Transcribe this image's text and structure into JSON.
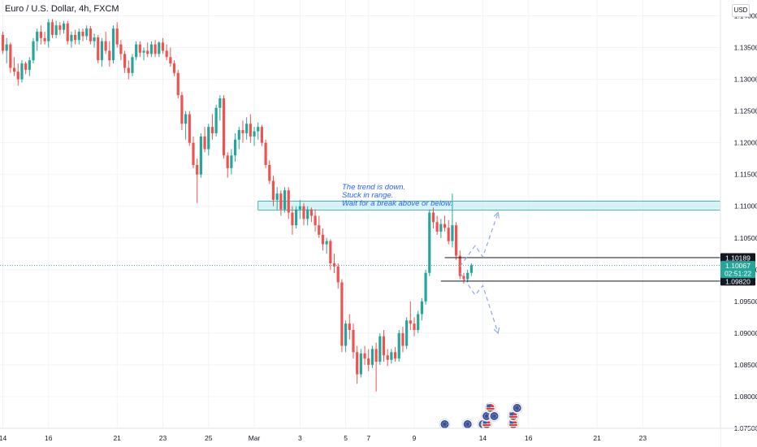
{
  "header": {
    "symbol_title": "Euro / U.S. Dollar, 4h, FXCM",
    "currency_button": "USD"
  },
  "annotation": {
    "lines": [
      "The trend is down.",
      "Stuck in range.",
      "Wait for a break above or below."
    ]
  },
  "colors": {
    "up": "#26a69a",
    "down": "#ef5350",
    "zone": "#b2ebf2",
    "zone_border": "#26a69a",
    "projection": "#90a8e8",
    "current_price_line": "#26a69a",
    "badge_dark": "#131722",
    "badge_current": "#26a69a",
    "axis_text": "#131722",
    "grid": "#f0f3fa"
  },
  "chart_data": {
    "type": "candlestick",
    "title": "Euro / U.S. Dollar, 4h, FXCM",
    "ylim": [
      1.075,
      1.1425
    ],
    "y_ticks": [
      "1.14000",
      "1.13500",
      "1.13000",
      "1.12500",
      "1.12000",
      "1.11500",
      "1.11000",
      "1.10500",
      "1.10000",
      "1.09500",
      "1.09000",
      "1.08500",
      "1.08000",
      "1.07500"
    ],
    "x_ticks": [
      {
        "label": "14",
        "bar": 0
      },
      {
        "label": "16",
        "bar": 12
      },
      {
        "label": "21",
        "bar": 30
      },
      {
        "label": "23",
        "bar": 42
      },
      {
        "label": "25",
        "bar": 54
      },
      {
        "label": "Mar",
        "bar": 66
      },
      {
        "label": "3",
        "bar": 78
      },
      {
        "label": "5",
        "bar": 90
      },
      {
        "label": "7",
        "bar": 96
      },
      {
        "label": "9",
        "bar": 108
      },
      {
        "label": "14",
        "bar": 126
      },
      {
        "label": "16",
        "bar": 138
      },
      {
        "label": "21",
        "bar": 156
      },
      {
        "label": "23",
        "bar": 168
      }
    ],
    "candles": [
      [
        1.137,
        1.1375,
        1.134,
        1.1345
      ],
      [
        1.1345,
        1.1365,
        1.1325,
        1.1355
      ],
      [
        1.1355,
        1.1358,
        1.131,
        1.1318
      ],
      [
        1.1318,
        1.1335,
        1.1305,
        1.1312
      ],
      [
        1.1312,
        1.1325,
        1.129,
        1.13
      ],
      [
        1.13,
        1.133,
        1.1295,
        1.1325
      ],
      [
        1.1325,
        1.1328,
        1.1308,
        1.1315
      ],
      [
        1.1315,
        1.1335,
        1.1305,
        1.133
      ],
      [
        1.133,
        1.1365,
        1.1325,
        1.136
      ],
      [
        1.136,
        1.138,
        1.1345,
        1.1375
      ],
      [
        1.1375,
        1.1385,
        1.1355,
        1.1365
      ],
      [
        1.1365,
        1.1375,
        1.1355,
        1.136
      ],
      [
        1.136,
        1.1395,
        1.135,
        1.139
      ],
      [
        1.139,
        1.1395,
        1.1365,
        1.137
      ],
      [
        1.137,
        1.1392,
        1.1365,
        1.1385
      ],
      [
        1.1385,
        1.139,
        1.137,
        1.1378
      ],
      [
        1.1378,
        1.1392,
        1.1372,
        1.1388
      ],
      [
        1.1388,
        1.1392,
        1.1355,
        1.136
      ],
      [
        1.136,
        1.1375,
        1.135,
        1.137
      ],
      [
        1.137,
        1.1378,
        1.1355,
        1.1362
      ],
      [
        1.1362,
        1.138,
        1.1355,
        1.1375
      ],
      [
        1.1375,
        1.138,
        1.136,
        1.1368
      ],
      [
        1.1368,
        1.1385,
        1.1362,
        1.138
      ],
      [
        1.138,
        1.1384,
        1.1355,
        1.136
      ],
      [
        1.136,
        1.1372,
        1.135,
        1.1366
      ],
      [
        1.1366,
        1.137,
        1.1325,
        1.133
      ],
      [
        1.133,
        1.1365,
        1.132,
        1.136
      ],
      [
        1.136,
        1.1375,
        1.134,
        1.1345
      ],
      [
        1.1345,
        1.136,
        1.132,
        1.133
      ],
      [
        1.133,
        1.1385,
        1.1325,
        1.138
      ],
      [
        1.138,
        1.139,
        1.135,
        1.1355
      ],
      [
        1.1355,
        1.1362,
        1.133,
        1.134
      ],
      [
        1.134,
        1.1345,
        1.131,
        1.1318
      ],
      [
        1.1318,
        1.133,
        1.13,
        1.131
      ],
      [
        1.131,
        1.134,
        1.1305,
        1.1335
      ],
      [
        1.1335,
        1.136,
        1.133,
        1.1355
      ],
      [
        1.1355,
        1.136,
        1.1335,
        1.1342
      ],
      [
        1.1342,
        1.135,
        1.133,
        1.1345
      ],
      [
        1.1345,
        1.1358,
        1.1335,
        1.134
      ],
      [
        1.134,
        1.136,
        1.1335,
        1.1355
      ],
      [
        1.1355,
        1.1362,
        1.1335,
        1.134
      ],
      [
        1.134,
        1.136,
        1.1335,
        1.1358
      ],
      [
        1.1358,
        1.1365,
        1.134,
        1.1345
      ],
      [
        1.1345,
        1.1355,
        1.133,
        1.1335
      ],
      [
        1.1335,
        1.135,
        1.132,
        1.1325
      ],
      [
        1.1325,
        1.133,
        1.1305,
        1.131
      ],
      [
        1.131,
        1.1315,
        1.127,
        1.1275
      ],
      [
        1.1275,
        1.128,
        1.122,
        1.123
      ],
      [
        1.123,
        1.125,
        1.1205,
        1.1245
      ],
      [
        1.1245,
        1.125,
        1.1195,
        1.12
      ],
      [
        1.12,
        1.121,
        1.116,
        1.1165
      ],
      [
        1.1165,
        1.1175,
        1.1105,
        1.115
      ],
      [
        1.115,
        1.1215,
        1.1145,
        1.121
      ],
      [
        1.121,
        1.1225,
        1.1185,
        1.119
      ],
      [
        1.119,
        1.123,
        1.118,
        1.1225
      ],
      [
        1.1225,
        1.1245,
        1.1205,
        1.1215
      ],
      [
        1.1215,
        1.126,
        1.121,
        1.1255
      ],
      [
        1.1255,
        1.1275,
        1.1235,
        1.127
      ],
      [
        1.127,
        1.1275,
        1.1175,
        1.118
      ],
      [
        1.118,
        1.1185,
        1.1145,
        1.116
      ],
      [
        1.116,
        1.119,
        1.115,
        1.118
      ],
      [
        1.118,
        1.1215,
        1.117,
        1.1205
      ],
      [
        1.1205,
        1.1225,
        1.119,
        1.122
      ],
      [
        1.122,
        1.1235,
        1.12,
        1.1215
      ],
      [
        1.1215,
        1.124,
        1.1205,
        1.123
      ],
      [
        1.123,
        1.1245,
        1.12,
        1.121
      ],
      [
        1.121,
        1.1225,
        1.1195,
        1.1218
      ],
      [
        1.1218,
        1.1232,
        1.1205,
        1.1225
      ],
      [
        1.1225,
        1.1228,
        1.1195,
        1.12
      ],
      [
        1.12,
        1.1205,
        1.116,
        1.1165
      ],
      [
        1.1165,
        1.1172,
        1.1135,
        1.114
      ],
      [
        1.114,
        1.1148,
        1.11,
        1.111
      ],
      [
        1.111,
        1.113,
        1.1095,
        1.112
      ],
      [
        1.112,
        1.1125,
        1.1085,
        1.1095
      ],
      [
        1.1095,
        1.113,
        1.109,
        1.1125
      ],
      [
        1.1125,
        1.113,
        1.108,
        1.109
      ],
      [
        1.109,
        1.11,
        1.1055,
        1.107
      ],
      [
        1.107,
        1.11,
        1.1065,
        1.1095
      ],
      [
        1.1095,
        1.111,
        1.108,
        1.11
      ],
      [
        1.11,
        1.1105,
        1.107,
        1.108
      ],
      [
        1.108,
        1.11,
        1.107,
        1.1095
      ],
      [
        1.1095,
        1.1098,
        1.1075,
        1.1085
      ],
      [
        1.1085,
        1.1095,
        1.106,
        1.107
      ],
      [
        1.107,
        1.1085,
        1.105,
        1.1055
      ],
      [
        1.1055,
        1.1065,
        1.103,
        1.104
      ],
      [
        1.104,
        1.105,
        1.1025,
        1.1045
      ],
      [
        1.1045,
        1.1048,
        1.1,
        1.101
      ],
      [
        1.101,
        1.1025,
        1.0995,
        1.1005
      ],
      [
        1.1005,
        1.101,
        1.097,
        1.098
      ],
      [
        1.098,
        1.0985,
        1.087,
        1.088
      ],
      [
        1.088,
        1.092,
        1.087,
        1.0915
      ],
      [
        1.0915,
        1.093,
        1.089,
        1.0905
      ],
      [
        1.0905,
        1.0915,
        1.086,
        1.087
      ],
      [
        1.087,
        1.088,
        1.082,
        1.0835
      ],
      [
        1.0835,
        1.0875,
        1.083,
        1.0868
      ],
      [
        1.0868,
        1.088,
        1.085,
        1.086
      ],
      [
        1.086,
        1.0875,
        1.084,
        1.085
      ],
      [
        1.085,
        1.088,
        1.0845,
        1.0875
      ],
      [
        1.0875,
        1.0885,
        1.0808,
        1.0855
      ],
      [
        1.0855,
        1.09,
        1.085,
        1.0895
      ],
      [
        1.0895,
        1.0905,
        1.0855,
        1.0865
      ],
      [
        1.0865,
        1.0875,
        1.0848,
        1.0858
      ],
      [
        1.0858,
        1.0875,
        1.0852,
        1.087
      ],
      [
        1.087,
        1.0878,
        1.0855,
        1.086
      ],
      [
        1.086,
        1.0905,
        1.0855,
        1.09
      ],
      [
        1.09,
        1.091,
        1.087,
        1.088
      ],
      [
        1.088,
        1.0925,
        1.0875,
        1.092
      ],
      [
        1.092,
        1.095,
        1.0905,
        1.0915
      ],
      [
        1.0915,
        1.0925,
        1.0895,
        1.0905
      ],
      [
        1.0905,
        1.0935,
        1.09,
        1.093
      ],
      [
        1.093,
        1.0955,
        1.092,
        1.095
      ],
      [
        1.095,
        1.1,
        1.0945,
        1.0995
      ],
      [
        1.0995,
        1.1095,
        1.099,
        1.109
      ],
      [
        1.109,
        1.1098,
        1.1065,
        1.1075
      ],
      [
        1.1075,
        1.1085,
        1.1055,
        1.106
      ],
      [
        1.106,
        1.108,
        1.105,
        1.1072
      ],
      [
        1.1072,
        1.1085,
        1.106,
        1.1066
      ],
      [
        1.1066,
        1.1078,
        1.104,
        1.1045
      ],
      [
        1.1045,
        1.112,
        1.1035,
        1.107
      ],
      [
        1.107,
        1.1075,
        1.1015,
        1.1022
      ],
      [
        1.1022,
        1.103,
        1.0985,
        1.099
      ],
      [
        1.099,
        1.0995,
        1.0978,
        1.0985
      ],
      [
        1.0985,
        1.1,
        1.098,
        1.0995
      ],
      [
        1.0995,
        1.101,
        1.099,
        1.1007
      ]
    ],
    "range_zone": {
      "top": 1.1108,
      "bottom": 1.1094,
      "start_bar": 67
    },
    "levels": [
      {
        "name": "upper",
        "price": 1.10189,
        "label": "1.10189",
        "start_bar": 116
      },
      {
        "name": "lower",
        "price": 1.0982,
        "label": "1.09820",
        "start_bar": 115
      }
    ],
    "current_price": {
      "price": 1.10067,
      "label": "1.10067",
      "countdown": "02:51:22"
    },
    "projections": [
      {
        "points": [
          [
            120,
            1.1005
          ],
          [
            124,
            1.1038
          ],
          [
            126,
            1.102
          ],
          [
            130,
            1.109
          ]
        ]
      },
      {
        "points": [
          [
            120,
            1.0995
          ],
          [
            124,
            1.096
          ],
          [
            126,
            1.0975
          ],
          [
            130,
            1.09
          ]
        ]
      }
    ],
    "events": [
      {
        "bar": 116,
        "level": 0,
        "flag": "EU"
      },
      {
        "bar": 122,
        "level": 0,
        "flag": "EU"
      },
      {
        "bar": 126,
        "level": 0,
        "flag": "EU"
      },
      {
        "bar": 127,
        "level": 0,
        "flag": "US"
      },
      {
        "bar": 127,
        "level": 1,
        "flag": "EU"
      },
      {
        "bar": 128,
        "level": 2,
        "flag": "US"
      },
      {
        "bar": 129,
        "level": 1,
        "flag": "EU"
      },
      {
        "bar": 134,
        "level": 0,
        "flag": "US"
      },
      {
        "bar": 134,
        "level": 1,
        "flag": "US"
      },
      {
        "bar": 135,
        "level": 2,
        "flag": "EU"
      }
    ]
  }
}
